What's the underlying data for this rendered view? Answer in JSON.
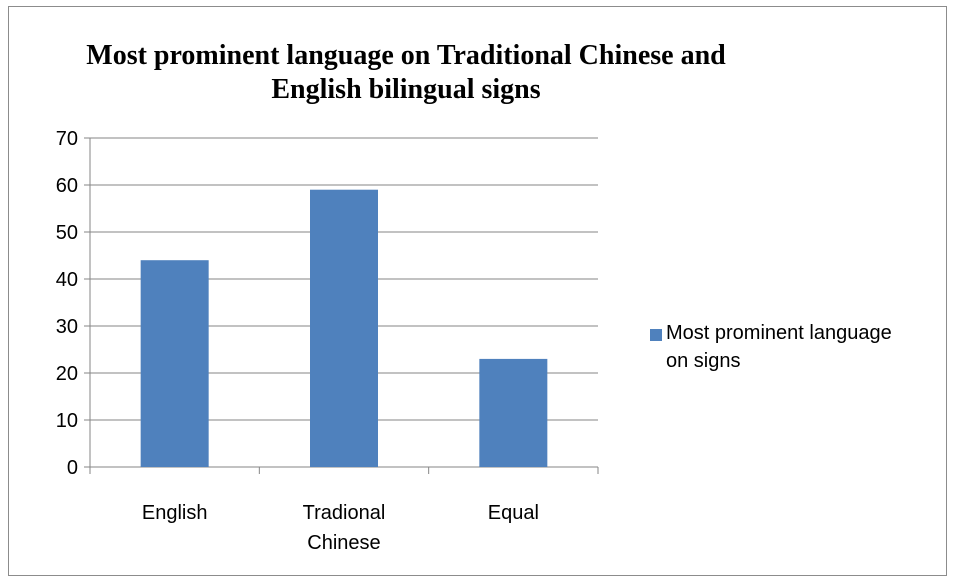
{
  "chart_data": {
    "type": "bar",
    "title": [
      "Most prominent language on Traditional Chinese and",
      "English bilingual signs"
    ],
    "categories": [
      [
        "English"
      ],
      [
        "Tradional",
        "Chinese"
      ],
      [
        "Equal"
      ]
    ],
    "series": [
      {
        "name": "Most prominent language on signs",
        "values": [
          44,
          59,
          23
        ]
      }
    ],
    "ylim": [
      0,
      70
    ],
    "yticks": [
      0,
      10,
      20,
      30,
      40,
      50,
      60,
      70
    ],
    "grid": true,
    "legend_position": "right",
    "colors": {
      "bar": "#4f81bd",
      "grid": "#868686",
      "axis": "#868686"
    }
  },
  "legend": {
    "label_line1": "Most prominent language",
    "label_line2": "on signs"
  },
  "title": {
    "line1": "Most prominent language on Traditional Chinese and",
    "line2": "English bilingual signs"
  }
}
